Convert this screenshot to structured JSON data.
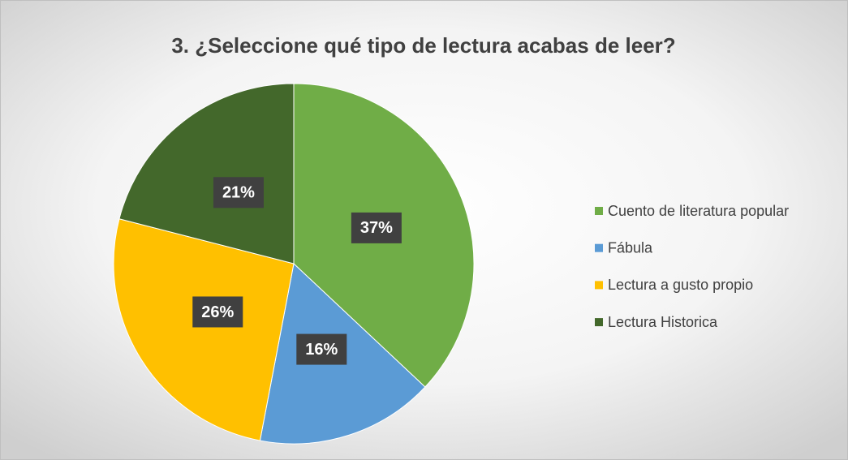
{
  "chart_data": {
    "type": "pie",
    "title": "3. ¿Seleccione qué tipo de lectura acabas de leer?",
    "categories": [
      "Cuento de literatura popular",
      "Fábula",
      "Lectura a gusto propio",
      "Lectura Historica"
    ],
    "values": [
      37,
      16,
      26,
      21
    ],
    "value_labels": [
      "37%",
      "16%",
      "26%",
      "21%"
    ],
    "colors": [
      "#70ad47",
      "#5b9bd5",
      "#ffc000",
      "#43682b"
    ],
    "legend": "right"
  }
}
